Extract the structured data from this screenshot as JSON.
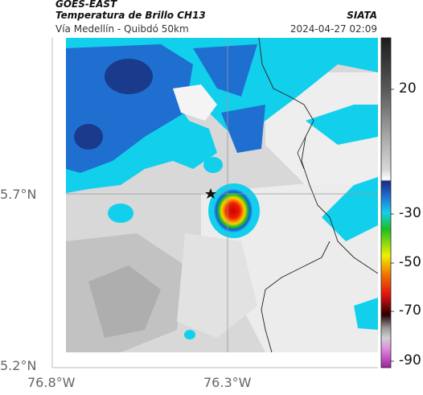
{
  "header": {
    "satellite": "GOES-EAST",
    "product": "Temperatura de Brillo CH13",
    "organization": "SIATA",
    "route": "Vía Medellín - Quibdó 50km",
    "timestamp": "2024-04-27 02:09"
  },
  "map": {
    "lat_labels": [
      "5.7°N",
      "5.2°N"
    ],
    "lon_labels": [
      "76.8°W",
      "76.3°W"
    ],
    "marker": "star-icon"
  },
  "colorbar": {
    "ticks": [
      "20",
      "-30",
      "-50",
      "-70",
      "-90"
    ],
    "colors": {
      "gray_top": "#1c1c1c",
      "blue_dark": "#1a3a8c",
      "blue": "#1f6fd0",
      "cyan": "#12d0ec",
      "green": "#19c020",
      "yellow": "#f0f000",
      "red": "#e01010",
      "dark_red": "#2a0000",
      "magenta": "#c040c0"
    }
  }
}
